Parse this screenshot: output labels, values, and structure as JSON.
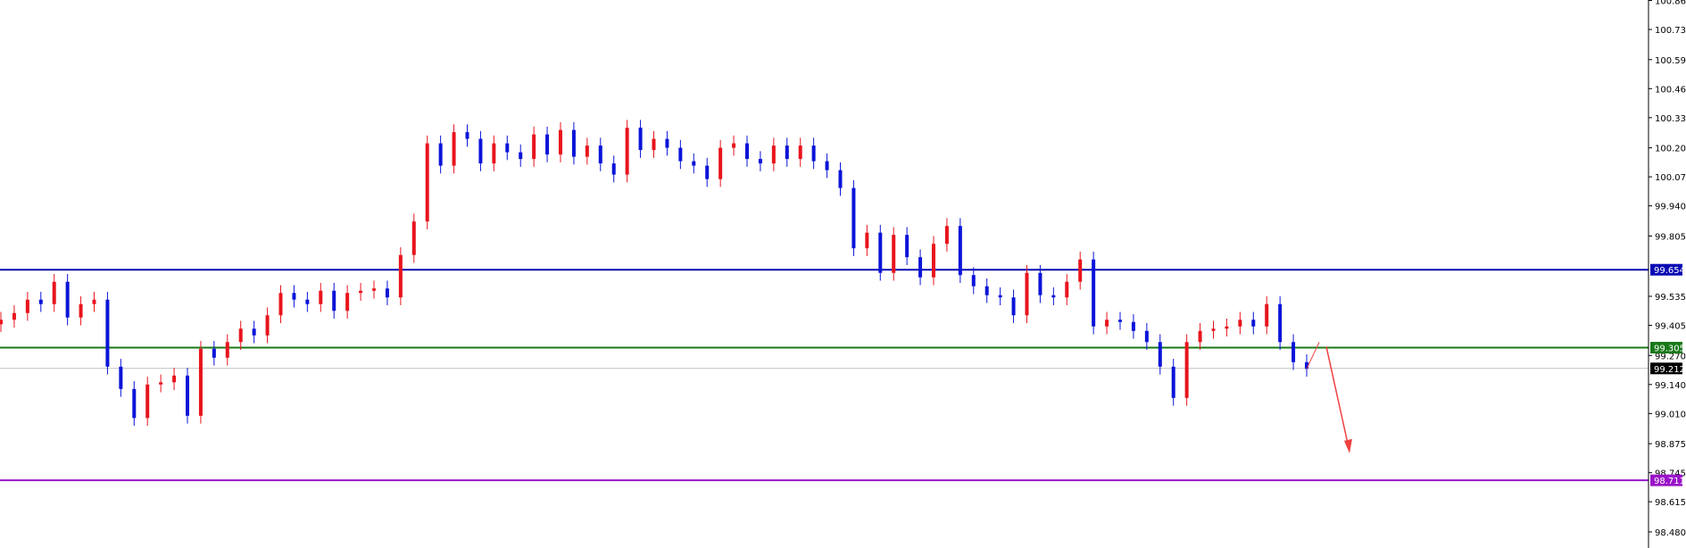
{
  "chart_data": {
    "type": "candlestick",
    "title": "",
    "xlabel": "",
    "ylabel": "",
    "ylim": [
      98.42,
      100.86
    ],
    "grid": false,
    "y_ticks": [
      "100.860",
      "100.730",
      "100.595",
      "100.465",
      "100.335",
      "100.200",
      "100.070",
      "99.940",
      "99.805",
      "99.535",
      "99.405",
      "99.270",
      "99.140",
      "99.010",
      "98.875",
      "98.745",
      "98.615",
      "98.480"
    ],
    "colors": {
      "up": "#e8141c",
      "down": "#0a14d8",
      "axis": "#000000"
    },
    "closes": [
      99.43,
      99.46,
      99.52,
      99.5,
      99.6,
      99.44,
      99.5,
      99.52,
      99.22,
      99.12,
      98.99,
      99.14,
      99.15,
      99.18,
      99.0,
      99.3,
      99.26,
      99.33,
      99.39,
      99.36,
      99.45,
      99.55,
      99.52,
      99.5,
      99.56,
      99.47,
      99.55,
      99.56,
      99.57,
      99.53,
      99.72,
      99.87,
      100.22,
      100.12,
      100.27,
      100.24,
      100.13,
      100.22,
      100.18,
      100.15,
      100.26,
      100.17,
      100.28,
      100.16,
      100.21,
      100.13,
      100.08,
      100.29,
      100.19,
      100.24,
      100.2,
      100.14,
      100.12,
      100.06,
      100.2,
      100.22,
      100.15,
      100.13,
      100.21,
      100.15,
      100.21,
      100.14,
      100.1,
      100.02,
      99.75,
      99.82,
      99.64,
      99.81,
      99.71,
      99.62,
      99.77,
      99.85,
      99.63,
      99.58,
      99.54,
      99.53,
      99.45,
      99.64,
      99.54,
      99.53,
      99.6,
      99.7,
      99.4,
      99.43,
      99.42,
      99.38,
      99.33,
      99.22,
      99.08,
      99.33,
      99.38,
      99.39,
      99.4,
      99.43,
      99.4,
      99.5,
      99.33,
      99.24,
      99.21
    ],
    "levels": [
      {
        "value": 99.654,
        "label": "99.654",
        "color": "#0a0ab4"
      },
      {
        "value": 99.305,
        "label": "99.305",
        "color": "#187818"
      },
      {
        "value": 98.711,
        "label": "98.711",
        "color": "#9a14c8"
      }
    ],
    "current_price": {
      "value": 99.212,
      "label": "99.212",
      "line_color": "#c0c0c0",
      "tag_color": "#000000"
    },
    "annotation": {
      "type": "arrow",
      "direction": "pullback-then-down",
      "color": "#f04040",
      "from_price": 99.21,
      "peak_price": 99.33,
      "target_price": 98.84
    }
  }
}
